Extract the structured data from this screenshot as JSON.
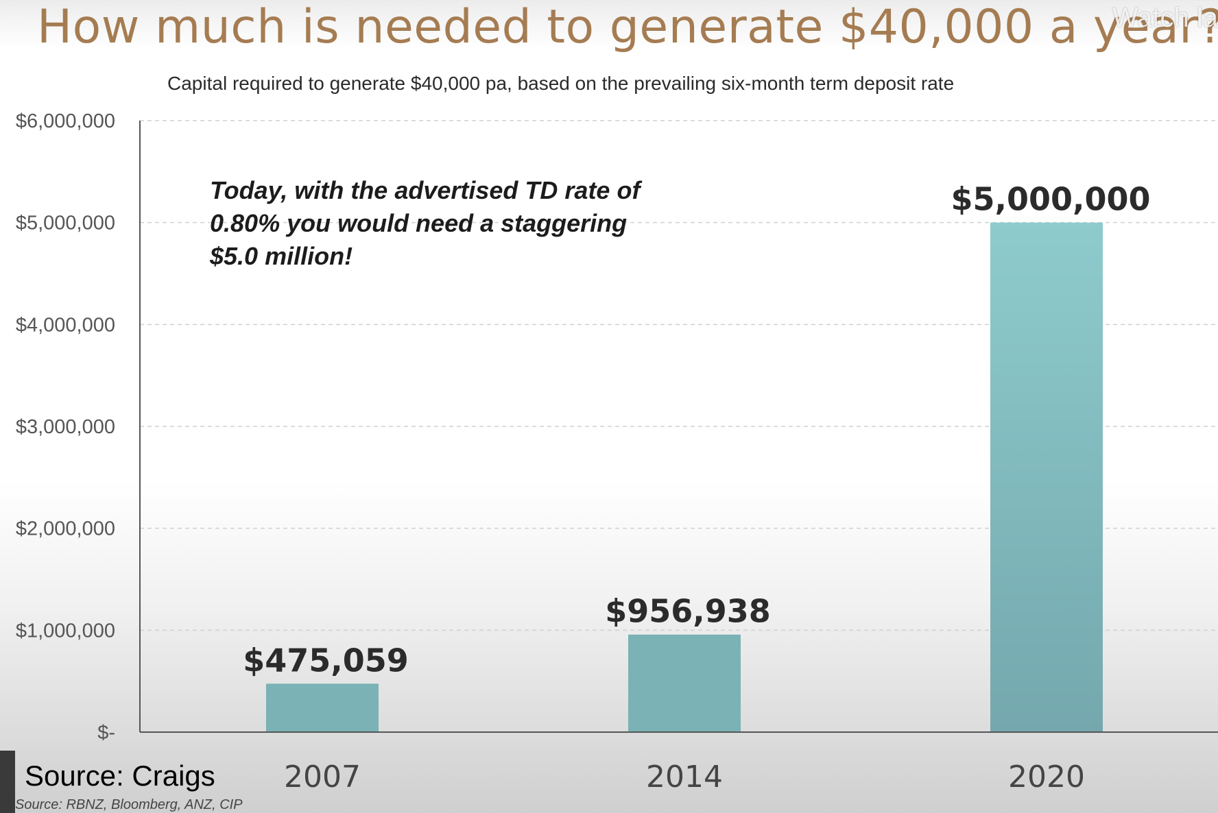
{
  "title": "How much is needed to generate $40,000 a year?",
  "watermark": "Watch la",
  "subtitle": "Capital required to generate $40,000 pa, based on the prevailing six-month term deposit rate",
  "annotation": "Today, with the advertised TD rate of\n0.80% you would need a staggering\n$5.0 million!",
  "overlay_caption": "Source: Craigs",
  "footnote": "Source: RBNZ, Bloomberg, ANZ, CIP",
  "colors": {
    "title": "#a57c52",
    "bar_top": "#8ecbcd",
    "bar_bottom": "#74a8ae",
    "bar_small": "#7ab2b5",
    "gridline": "#d0d0d0",
    "axis": "#555555"
  },
  "chart_data": {
    "type": "bar",
    "title": "How much is needed to generate $40,000 a year?",
    "subtitle": "Capital required to generate $40,000 pa, based on the prevailing six-month term deposit rate",
    "categories": [
      "2007",
      "2014",
      "2020"
    ],
    "values": [
      475059,
      956938,
      5000000
    ],
    "data_labels": [
      "$475,059",
      "$956,938",
      "$5,000,000"
    ],
    "ylim": [
      0,
      6000000
    ],
    "yticks": [
      0,
      1000000,
      2000000,
      3000000,
      4000000,
      5000000,
      6000000
    ],
    "ytick_labels": [
      "$-",
      "$1,000,000",
      "$2,000,000",
      "$3,000,000",
      "$4,000,000",
      "$5,000,000",
      "$6,000,000"
    ],
    "grid": true,
    "legend": "none"
  }
}
